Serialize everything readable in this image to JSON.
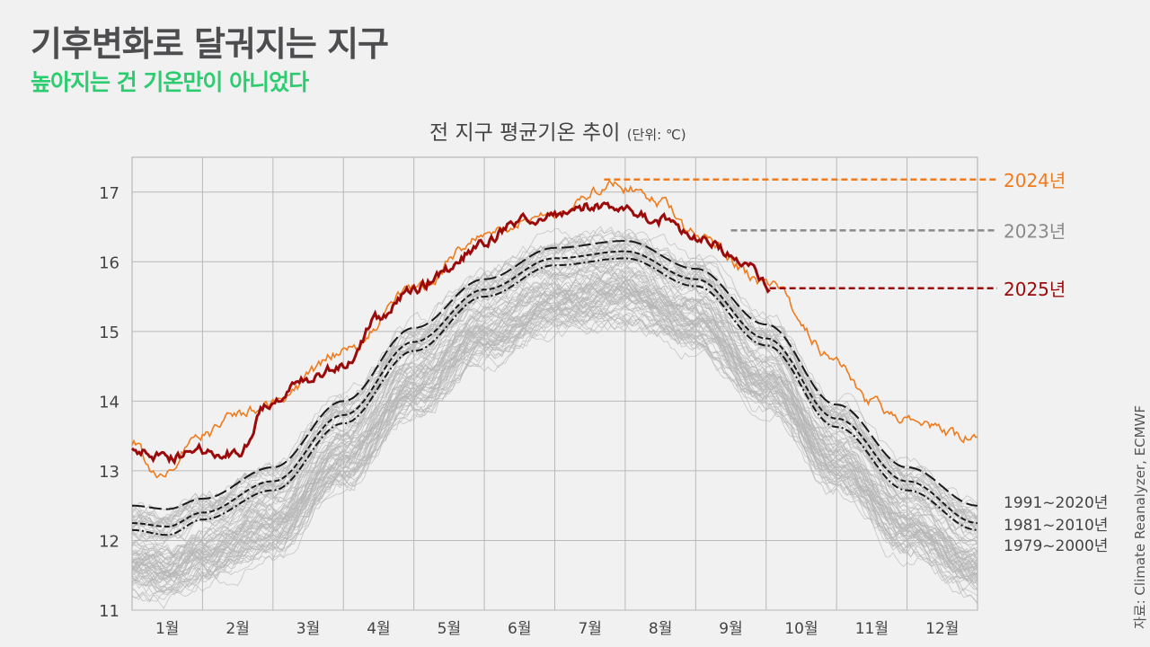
{
  "header": {
    "title": "기후변화로 달궈지는 지구",
    "subtitle": "높아지는 건 기온만이 아니었다"
  },
  "source": "자료: Climate Reanalyzer, ECMWF",
  "chart_data": {
    "type": "line",
    "title": "전 지구 평균기온 추이",
    "unit": "(단위: ℃)",
    "xlabel": "",
    "ylabel": "",
    "x_unit": "month position (0 = Jan 1, 12 = Dec 31)",
    "xlim": [
      0,
      12
    ],
    "ylim": [
      11,
      17.5
    ],
    "yticks": [
      11,
      12,
      13,
      14,
      15,
      16,
      17
    ],
    "xtick_labels": [
      "1월",
      "2월",
      "3월",
      "4월",
      "5월",
      "6월",
      "7월",
      "8월",
      "9월",
      "10월",
      "11월",
      "12월"
    ],
    "grid": true,
    "series": [
      {
        "name": "2024년",
        "color": "#f07b1d",
        "style": "solid",
        "x": [
          0,
          0.35,
          1,
          1.5,
          2,
          3,
          4,
          5,
          6,
          6.8,
          7,
          7.5,
          8,
          9,
          10,
          10.45,
          11,
          12
        ],
        "values": [
          13.4,
          12.95,
          13.5,
          13.8,
          14.0,
          14.7,
          15.6,
          16.4,
          16.7,
          17.1,
          17.05,
          16.85,
          16.4,
          15.7,
          14.6,
          14.0,
          13.7,
          13.45
        ],
        "label_value": 17.18
      },
      {
        "name": "2023년",
        "color": "#8a8a8a",
        "style": "dashed-label",
        "x": [],
        "values": [],
        "label_value": 16.45,
        "label_from_x": 8.5
      },
      {
        "name": "2025년",
        "color": "#9b0a0a",
        "style": "solid-bold",
        "x": [
          0,
          0.5,
          1,
          1.5,
          1.9,
          2.4,
          3,
          3.5,
          4,
          4.5,
          5,
          5.5,
          6,
          6.5,
          7,
          7.5,
          8,
          8.5,
          8.8,
          9.05
        ],
        "values": [
          13.3,
          13.2,
          13.3,
          13.25,
          13.9,
          14.3,
          14.5,
          15.2,
          15.6,
          15.9,
          16.3,
          16.6,
          16.7,
          16.8,
          16.75,
          16.6,
          16.35,
          16.15,
          15.9,
          15.6
        ],
        "label_value": 15.62
      },
      {
        "name": "1991~2020년",
        "color": "#1a1a1a",
        "style": "long-dash",
        "x": [
          0,
          0.5,
          1,
          2,
          3,
          4,
          5,
          6,
          7,
          8,
          9,
          10,
          11,
          12
        ],
        "values": [
          12.5,
          12.45,
          12.6,
          13.05,
          14.0,
          15.05,
          15.75,
          16.2,
          16.3,
          15.9,
          15.1,
          13.95,
          13.05,
          12.5
        ]
      },
      {
        "name": "1981~2010년",
        "color": "#1a1a1a",
        "style": "short-dash",
        "x": [
          0,
          0.5,
          1,
          2,
          3,
          4,
          5,
          6,
          7,
          8,
          9,
          10,
          11,
          12
        ],
        "values": [
          12.25,
          12.2,
          12.4,
          12.85,
          13.8,
          14.85,
          15.6,
          16.05,
          16.15,
          15.75,
          14.9,
          13.75,
          12.85,
          12.25
        ]
      },
      {
        "name": "1979~2000년",
        "color": "#1a1a1a",
        "style": "dash-dot",
        "x": [
          0,
          0.5,
          1,
          2,
          3,
          4,
          5,
          6,
          7,
          8,
          9,
          10,
          11,
          12
        ],
        "values": [
          12.15,
          12.08,
          12.3,
          12.72,
          13.68,
          14.72,
          15.5,
          15.95,
          16.05,
          15.65,
          14.8,
          13.63,
          12.72,
          12.15
        ]
      }
    ],
    "historical_spread": {
      "color": "#b5b5b5",
      "count": 80,
      "offset_range": [
        -0.9,
        0.35
      ],
      "relative_to": "1979~2000년"
    }
  }
}
